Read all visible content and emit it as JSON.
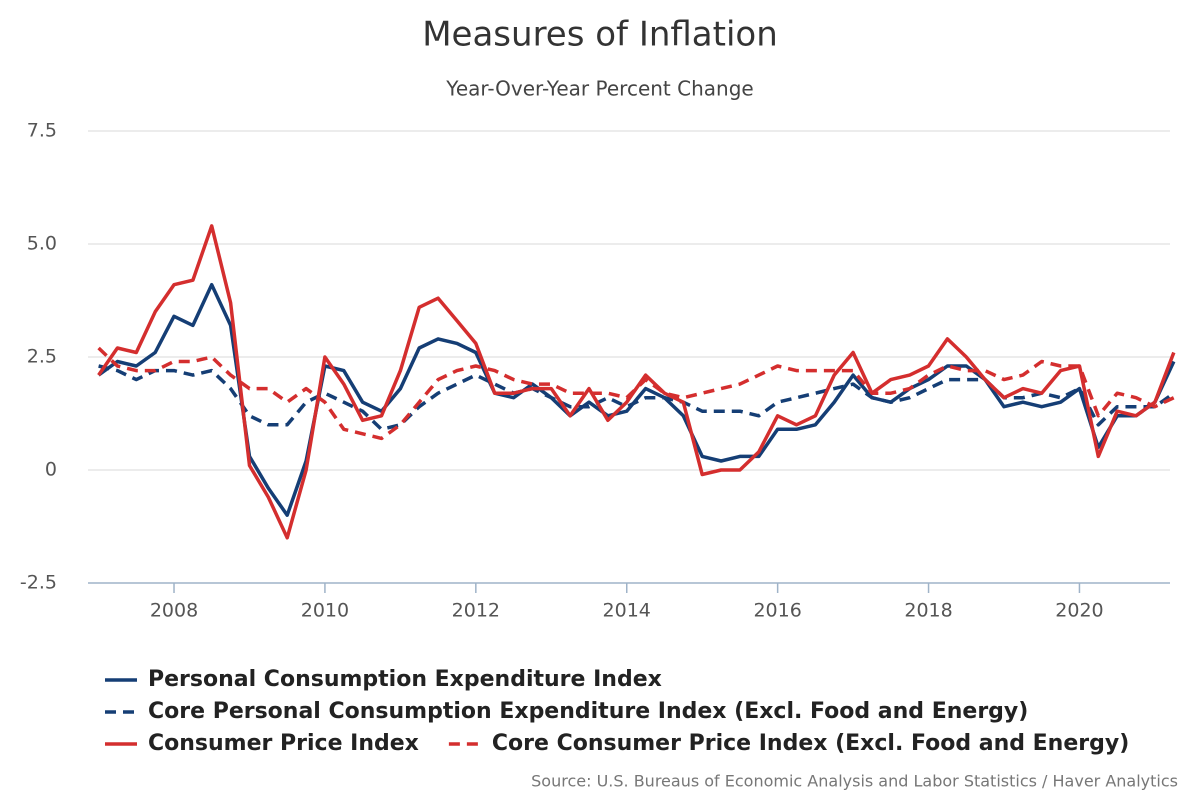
{
  "chart_data": {
    "type": "line",
    "title": "Measures of Inflation",
    "subtitle": "Year-Over-Year Percent Change",
    "source": "Source: U.S. Bureaus of Economic Analysis and Labor Statistics / Haver Analytics",
    "x": [
      2007,
      2007.25,
      2007.5,
      2007.75,
      2008,
      2008.25,
      2008.5,
      2008.75,
      2009,
      2009.25,
      2009.5,
      2009.75,
      2010,
      2010.25,
      2010.5,
      2010.75,
      2011,
      2011.25,
      2011.5,
      2011.75,
      2012,
      2012.25,
      2012.5,
      2012.75,
      2013,
      2013.25,
      2013.5,
      2013.75,
      2014,
      2014.25,
      2014.5,
      2014.75,
      2015,
      2015.25,
      2015.5,
      2015.75,
      2016,
      2016.25,
      2016.5,
      2016.75,
      2017,
      2017.25,
      2017.5,
      2017.75,
      2018,
      2018.25,
      2018.5,
      2018.75,
      2019,
      2019.25,
      2019.5,
      2019.75,
      2020,
      2020.25,
      2020.5,
      2020.75,
      2021,
      2021.25
    ],
    "xlim": [
      2006.86,
      2021.2
    ],
    "xticks": [
      2008,
      2010,
      2012,
      2014,
      2016,
      2018,
      2020
    ],
    "ylim": [
      -2.5,
      7.5
    ],
    "yticks": [
      7.5,
      {
        "value": 5,
        "label": "5.0"
      },
      2.5,
      0,
      -2.5
    ],
    "grid": true,
    "series": [
      {
        "name": "Personal Consumption Expenditure Index",
        "color": "#153e75",
        "dashed": false,
        "values": [
          2.1,
          2.4,
          2.3,
          2.6,
          3.4,
          3.2,
          4.1,
          3.2,
          0.3,
          -0.4,
          -1.0,
          0.2,
          2.3,
          2.2,
          1.5,
          1.3,
          1.8,
          2.7,
          2.9,
          2.8,
          2.6,
          1.7,
          1.6,
          1.9,
          1.6,
          1.2,
          1.5,
          1.2,
          1.3,
          1.8,
          1.6,
          1.2,
          0.3,
          0.2,
          0.3,
          0.3,
          0.9,
          0.9,
          1.0,
          1.5,
          2.1,
          1.6,
          1.5,
          1.8,
          2.0,
          2.3,
          2.3,
          2.0,
          1.4,
          1.5,
          1.4,
          1.5,
          1.8,
          0.5,
          1.2,
          1.2,
          1.5,
          2.4
        ]
      },
      {
        "name": "Core Personal Consumption Expenditure Index (Excl. Food and Energy)",
        "color": "#153e75",
        "dashed": true,
        "values": [
          2.3,
          2.2,
          2.0,
          2.2,
          2.2,
          2.1,
          2.2,
          1.8,
          1.2,
          1.0,
          1.0,
          1.5,
          1.7,
          1.5,
          1.3,
          0.9,
          1.0,
          1.4,
          1.7,
          1.9,
          2.1,
          1.9,
          1.7,
          1.8,
          1.6,
          1.4,
          1.4,
          1.6,
          1.4,
          1.6,
          1.6,
          1.5,
          1.3,
          1.3,
          1.3,
          1.2,
          1.5,
          1.6,
          1.7,
          1.8,
          1.9,
          1.6,
          1.5,
          1.6,
          1.8,
          2.0,
          2.0,
          2.0,
          1.6,
          1.6,
          1.7,
          1.6,
          1.8,
          1.0,
          1.4,
          1.4,
          1.4,
          1.7
        ]
      },
      {
        "name": "Consumer Price Index",
        "color": "#d42e2e",
        "dashed": false,
        "values": [
          2.1,
          2.7,
          2.6,
          3.5,
          4.1,
          4.2,
          5.4,
          3.7,
          0.1,
          -0.6,
          -1.5,
          0.0,
          2.5,
          1.9,
          1.1,
          1.2,
          2.2,
          3.6,
          3.8,
          3.3,
          2.8,
          1.7,
          1.7,
          1.8,
          1.8,
          1.2,
          1.8,
          1.1,
          1.5,
          2.1,
          1.7,
          1.5,
          -0.1,
          0.0,
          0.0,
          0.4,
          1.2,
          1.0,
          1.2,
          2.1,
          2.6,
          1.7,
          2.0,
          2.1,
          2.3,
          2.9,
          2.5,
          2.0,
          1.6,
          1.8,
          1.7,
          2.2,
          2.3,
          0.3,
          1.3,
          1.2,
          1.5,
          2.6
        ]
      },
      {
        "name": "Core Consumer Price Index (Excl. Food and Energy)",
        "color": "#d42e2e",
        "dashed": true,
        "values": [
          2.7,
          2.3,
          2.2,
          2.2,
          2.4,
          2.4,
          2.5,
          2.1,
          1.8,
          1.8,
          1.5,
          1.8,
          1.5,
          0.9,
          0.8,
          0.7,
          1.0,
          1.5,
          2.0,
          2.2,
          2.3,
          2.2,
          2.0,
          1.9,
          1.9,
          1.7,
          1.7,
          1.7,
          1.6,
          2.0,
          1.7,
          1.6,
          1.7,
          1.8,
          1.9,
          2.1,
          2.3,
          2.2,
          2.2,
          2.2,
          2.2,
          1.7,
          1.7,
          1.8,
          2.1,
          2.3,
          2.2,
          2.2,
          2.0,
          2.1,
          2.4,
          2.3,
          2.3,
          1.2,
          1.7,
          1.6,
          1.4,
          1.6
        ]
      }
    ]
  }
}
